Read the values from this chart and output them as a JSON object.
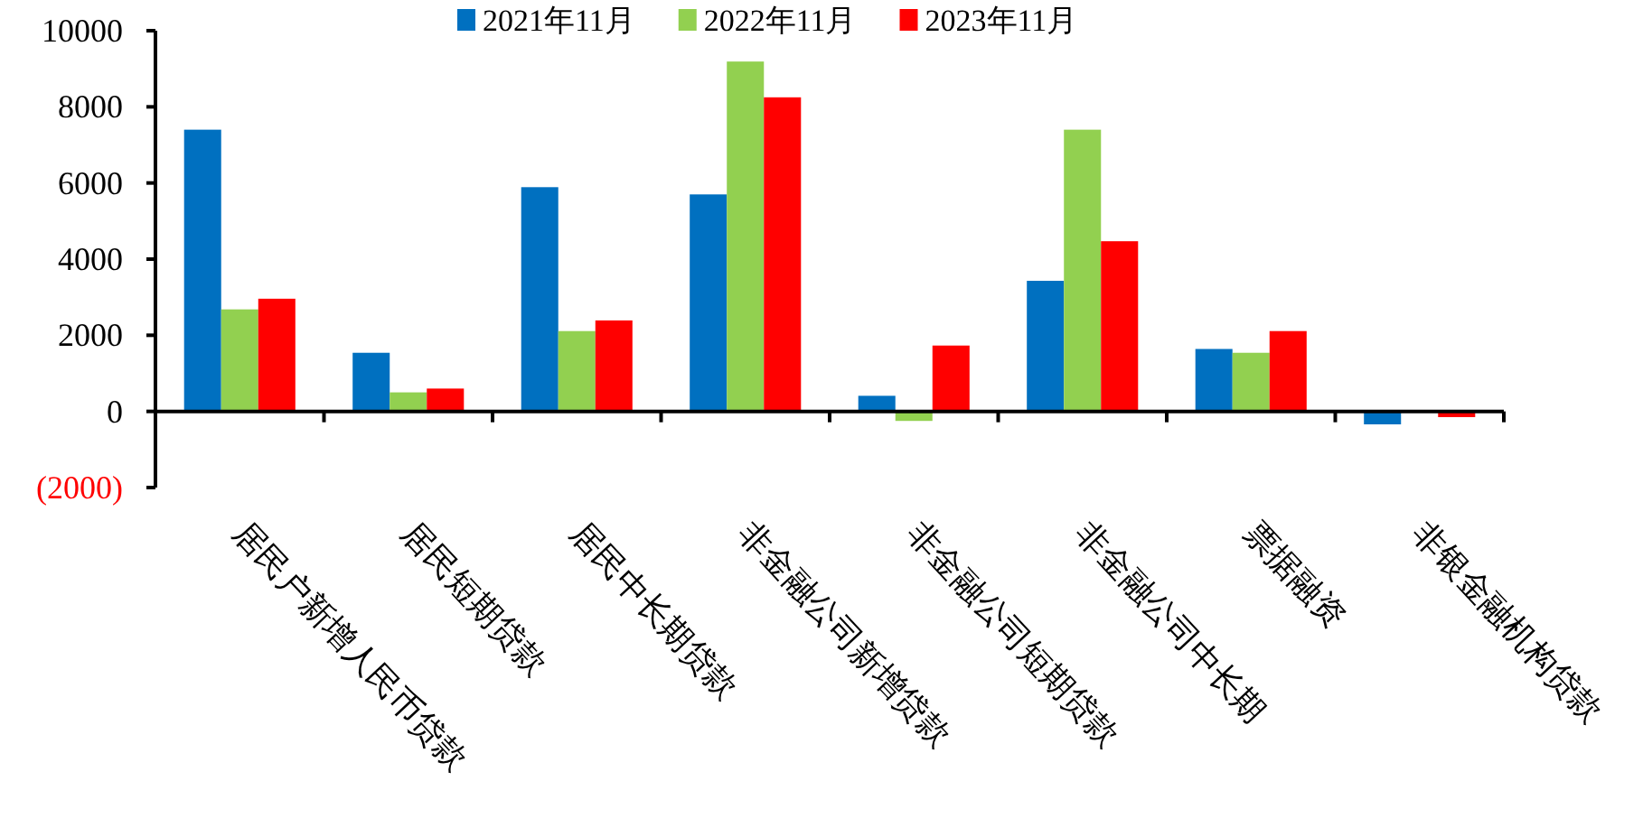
{
  "chart_data": {
    "type": "bar",
    "categories": [
      "居民户新增人民币贷款",
      "居民短期贷款",
      "居民中长期贷款",
      "非金融公司新增贷款",
      "非金融公司短期贷款",
      "非金融公司中长期",
      "票据融资",
      "非银金融机构贷款"
    ],
    "series": [
      {
        "name": "2021年11月",
        "color": "#0070c0",
        "values": [
          7400,
          1540,
          5890,
          5700,
          410,
          3430,
          1640,
          -340
        ]
      },
      {
        "name": "2022年11月",
        "color": "#92d050",
        "values": [
          2680,
          500,
          2110,
          9190,
          -250,
          7400,
          1540,
          null
        ]
      },
      {
        "name": "2023年11月",
        "color": "#ff0000",
        "values": [
          2960,
          600,
          2390,
          8250,
          1730,
          4470,
          2110,
          -150
        ]
      }
    ],
    "ylim": [
      -2000,
      10000
    ],
    "yticks": [
      {
        "value": -2000,
        "label": "(2000)"
      },
      0,
      2000,
      4000,
      6000,
      8000,
      10000
    ],
    "legend": "top"
  }
}
